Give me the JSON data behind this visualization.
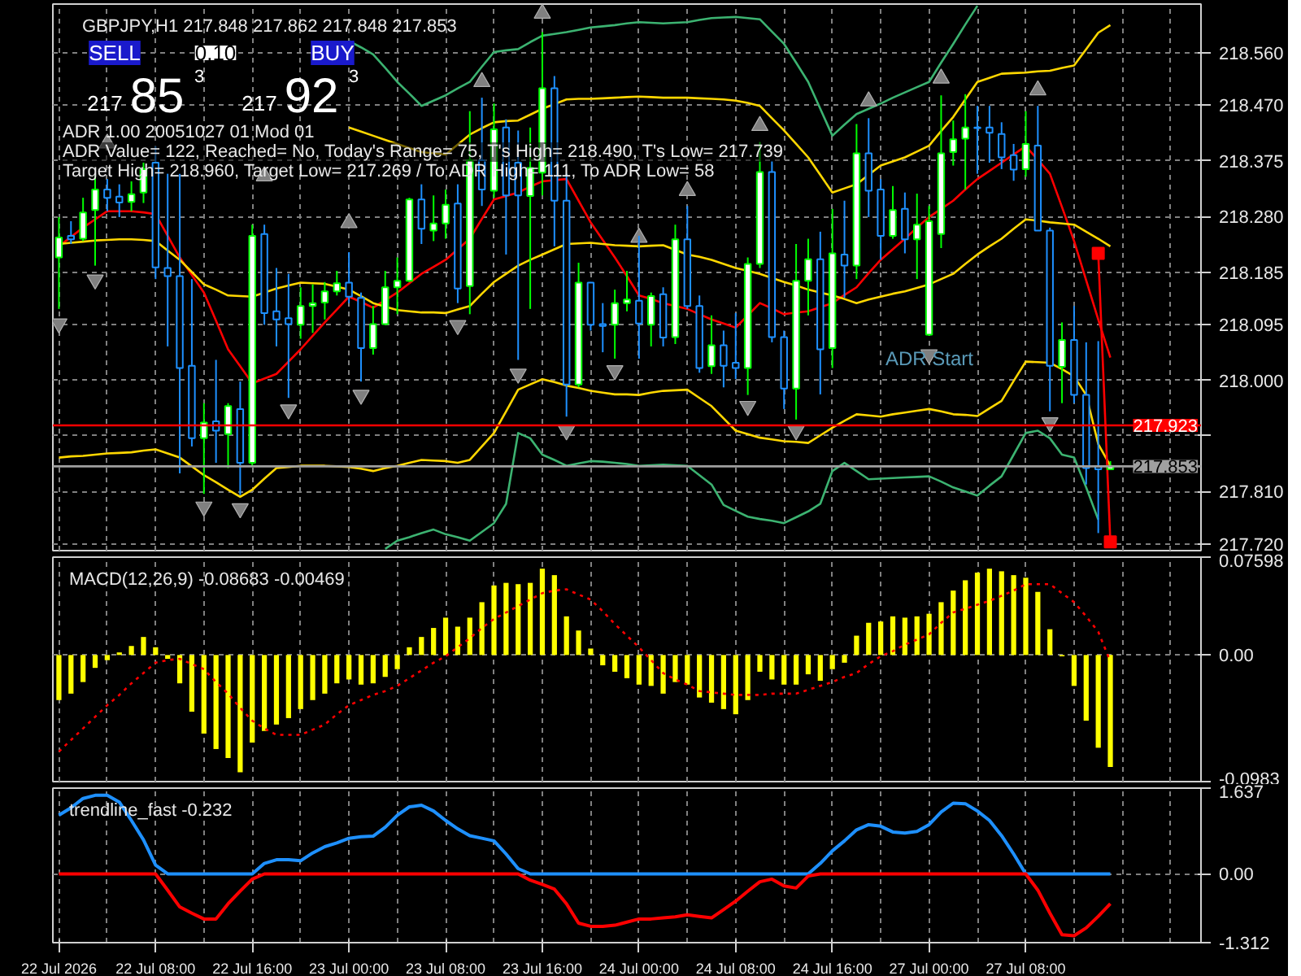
{
  "chart_data": [
    {
      "type": "candlestick",
      "title": "GBPJPY,H1 217.848 217.862 217.848 217.853",
      "categories": [
        null,
        null,
        null,
        null,
        null,
        null,
        null,
        null,
        null,
        null,
        null,
        null,
        null,
        null,
        null,
        null,
        null,
        null,
        null,
        null,
        null,
        null,
        null,
        null,
        null,
        null,
        null,
        null,
        null,
        null,
        null,
        null,
        null,
        null,
        null,
        null,
        null,
        null,
        null,
        null,
        null,
        null,
        null,
        null,
        null,
        null,
        null,
        null,
        null,
        null,
        null,
        null,
        null,
        null,
        null,
        null,
        null,
        null,
        null,
        null,
        null,
        null,
        null,
        null,
        null,
        null,
        null,
        null,
        null,
        null,
        null,
        null,
        null,
        null,
        null,
        null,
        null,
        null,
        null,
        null,
        null,
        null,
        null,
        null,
        null,
        null,
        null,
        null
      ],
      "ohlc": [
        [
          218.21,
          218.279,
          218.122,
          218.244
        ],
        [
          218.247,
          218.272,
          218.233,
          218.241
        ],
        [
          218.242,
          218.312,
          218.238,
          218.287
        ],
        [
          218.291,
          218.349,
          218.196,
          218.326
        ],
        [
          218.326,
          218.344,
          218.289,
          218.312
        ],
        [
          218.314,
          218.335,
          218.279,
          218.304
        ],
        [
          218.305,
          218.34,
          218.289,
          218.318
        ],
        [
          218.321,
          218.372,
          218.303,
          218.361
        ],
        [
          218.372,
          218.4,
          218.173,
          218.193
        ],
        [
          218.192,
          218.353,
          218.058,
          218.178
        ],
        [
          218.178,
          218.353,
          217.841,
          218.021
        ],
        [
          218.025,
          218.173,
          217.887,
          217.901
        ],
        [
          217.901,
          217.961,
          217.806,
          217.928
        ],
        [
          217.93,
          218.035,
          217.859,
          217.914
        ],
        [
          217.908,
          217.961,
          217.85,
          217.956
        ],
        [
          217.951,
          217.998,
          217.804,
          217.859
        ],
        [
          217.859,
          218.266,
          217.854,
          218.247
        ],
        [
          218.25,
          218.266,
          218.095,
          218.115
        ],
        [
          218.118,
          218.192,
          218.058,
          218.104
        ],
        [
          218.106,
          218.182,
          217.97,
          218.096
        ],
        [
          218.095,
          218.159,
          218.071,
          218.127
        ],
        [
          218.127,
          218.164,
          218.081,
          218.132
        ],
        [
          218.133,
          218.168,
          218.104,
          218.152
        ],
        [
          218.152,
          218.187,
          218.145,
          218.166
        ],
        [
          218.167,
          218.219,
          218.132,
          218.143
        ],
        [
          218.141,
          218.15,
          217.998,
          218.055
        ],
        [
          218.055,
          218.127,
          218.044,
          218.096
        ],
        [
          218.096,
          218.187,
          218.095,
          218.159
        ],
        [
          218.159,
          218.21,
          218.113,
          218.17
        ],
        [
          218.17,
          218.312,
          218.168,
          218.309
        ],
        [
          218.309,
          218.335,
          218.233,
          218.259
        ],
        [
          218.256,
          218.316,
          218.238,
          218.268
        ],
        [
          218.268,
          218.326,
          218.242,
          218.3
        ],
        [
          218.302,
          218.335,
          218.132,
          218.157
        ],
        [
          218.161,
          218.46,
          218.113,
          218.376
        ],
        [
          218.376,
          218.483,
          218.298,
          218.326
        ],
        [
          218.324,
          218.473,
          218.312,
          218.429
        ],
        [
          218.432,
          218.446,
          218.215,
          218.316
        ],
        [
          218.372,
          218.427,
          218.035,
          218.316
        ],
        [
          218.315,
          218.432,
          218.122,
          218.363
        ],
        [
          218.355,
          218.595,
          218.316,
          218.499
        ],
        [
          218.499,
          218.52,
          218.229,
          218.307
        ],
        [
          218.307,
          218.353,
          217.938,
          217.993
        ],
        [
          217.993,
          218.201,
          217.988,
          218.167
        ],
        [
          218.167,
          218.168,
          218.085,
          218.095
        ],
        [
          218.096,
          218.132,
          218.048,
          218.093
        ],
        [
          218.095,
          218.155,
          218.037,
          218.132
        ],
        [
          218.132,
          218.187,
          218.118,
          218.138
        ],
        [
          218.136,
          218.247,
          218.037,
          218.097
        ],
        [
          218.095,
          218.15,
          218.058,
          218.144
        ],
        [
          218.147,
          218.159,
          218.058,
          218.073
        ],
        [
          218.074,
          218.266,
          218.062,
          218.241
        ],
        [
          218.241,
          218.298,
          218.122,
          218.127
        ],
        [
          218.127,
          218.145,
          218.013,
          218.021
        ],
        [
          218.024,
          218.111,
          218.011,
          218.06
        ],
        [
          218.06,
          218.085,
          217.988,
          218.025
        ],
        [
          218.03,
          218.115,
          218.002,
          218.021
        ],
        [
          218.021,
          218.21,
          217.975,
          218.199
        ],
        [
          218.199,
          218.407,
          218.192,
          218.356
        ],
        [
          218.356,
          218.375,
          218.065,
          218.074
        ],
        [
          218.074,
          218.085,
          217.951,
          217.986
        ],
        [
          217.986,
          218.233,
          217.933,
          218.17
        ],
        [
          218.17,
          218.242,
          218.111,
          218.207
        ],
        [
          218.207,
          218.254,
          217.976,
          218.053
        ],
        [
          218.055,
          218.293,
          218.021,
          218.217
        ],
        [
          218.215,
          218.307,
          218.141,
          218.196
        ],
        [
          218.196,
          218.438,
          218.173,
          218.388
        ],
        [
          218.388,
          218.448,
          218.279,
          218.324
        ],
        [
          218.326,
          218.344,
          218.206,
          218.247
        ],
        [
          218.247,
          218.332,
          218.242,
          218.291
        ],
        [
          218.293,
          218.321,
          218.217,
          218.241
        ],
        [
          218.241,
          218.319,
          218.173,
          218.266
        ],
        [
          218.078,
          218.298,
          218.076,
          218.272
        ],
        [
          218.25,
          218.487,
          218.226,
          218.388
        ],
        [
          218.39,
          218.444,
          218.367,
          218.412
        ],
        [
          218.413,
          218.489,
          218.326,
          218.432
        ],
        [
          218.432,
          218.469,
          218.353,
          218.431
        ],
        [
          218.432,
          218.469,
          218.372,
          218.423
        ],
        [
          218.421,
          218.441,
          218.361,
          218.381
        ],
        [
          218.385,
          218.404,
          218.341,
          218.36
        ],
        [
          218.361,
          218.46,
          218.348,
          218.404
        ],
        [
          218.401,
          218.469,
          218.256,
          218.256
        ],
        [
          218.256,
          218.261,
          217.947,
          218.025
        ],
        [
          218.023,
          218.099,
          217.961,
          218.069
        ],
        [
          218.069,
          218.127,
          217.961,
          217.975
        ],
        [
          217.975,
          218.065,
          217.822,
          217.85
        ],
        [
          217.853,
          218.067,
          217.739,
          217.848
        ],
        [
          217.848,
          217.862,
          217.848,
          217.853
        ]
      ],
      "series": [
        {
          "type": "line",
          "color": "#ff0000",
          "values": [
            218.229,
            218.245,
            218.261,
            218.275,
            218.289,
            218.289,
            218.289,
            218.287,
            218.284,
            218.247,
            218.21,
            218.18,
            218.15,
            218.102,
            218.053,
            218.024,
            217.995,
            218.003,
            218.011,
            218.032,
            218.053,
            218.076,
            218.099,
            218.121,
            218.143,
            218.134,
            218.124,
            218.137,
            218.15,
            218.166,
            218.182,
            218.194,
            218.206,
            218.224,
            218.242,
            218.276,
            218.309,
            218.315,
            218.321,
            218.331,
            218.34,
            218.342,
            218.344,
            218.307,
            218.27,
            218.24,
            218.21,
            218.178,
            218.145,
            218.139,
            218.132,
            218.127,
            218.122,
            218.113,
            218.104,
            218.097,
            218.09,
            218.111,
            218.132,
            218.123,
            218.113,
            218.116,
            218.118,
            218.125,
            218.132,
            218.146,
            218.159,
            218.183,
            218.206,
            218.224,
            218.242,
            218.261,
            218.279,
            218.293,
            218.307,
            218.326,
            218.344,
            218.358,
            218.372,
            218.386,
            218.4,
            218.377,
            218.353,
            218.296,
            218.238,
            218.171,
            218.104,
            218.039
          ]
        },
        {
          "type": "line",
          "color": "#ffd700",
          "values": [
            218.233,
            218.235,
            218.237,
            218.239,
            218.24,
            218.241,
            218.241,
            218.24,
            218.238,
            218.222,
            218.206,
            218.185,
            218.164,
            218.155,
            218.145,
            218.144,
            218.143,
            218.15,
            218.157,
            218.162,
            218.167,
            218.166,
            218.165,
            218.16,
            218.155,
            218.144,
            218.132,
            218.126,
            218.12,
            218.118,
            218.116,
            218.116,
            218.115,
            218.121,
            218.127,
            218.148,
            218.168,
            218.182,
            218.196,
            218.206,
            218.215,
            218.224,
            218.233,
            218.234,
            218.235,
            218.233,
            218.231,
            218.23,
            218.229,
            218.23,
            218.231,
            218.223,
            218.215,
            218.211,
            218.206,
            218.199,
            218.192,
            218.187,
            218.182,
            218.175,
            218.168,
            218.162,
            218.155,
            218.15,
            218.145,
            218.139,
            218.132,
            218.138,
            218.143,
            218.148,
            218.152,
            218.158,
            218.164,
            218.173,
            218.182,
            218.199,
            218.215,
            218.229,
            218.242,
            218.259,
            218.275,
            218.273,
            218.27,
            218.268,
            218.266,
            218.254,
            218.242,
            218.229
          ]
        },
        {
          "type": "line",
          "color": "#ffd700",
          "values": [
            null,
            null,
            null,
            null,
            null,
            null,
            null,
            null,
            null,
            null,
            null,
            null,
            null,
            null,
            null,
            null,
            null,
            null,
            null,
            null,
            null,
            null,
            null,
            null,
            218.432,
            218.425,
            218.418,
            218.411,
            218.404,
            218.397,
            218.39,
            218.388,
            218.386,
            218.403,
            218.42,
            218.431,
            218.441,
            218.443,
            218.444,
            218.454,
            218.464,
            218.472,
            218.48,
            218.481,
            218.481,
            218.482,
            218.483,
            218.484,
            218.485,
            218.484,
            218.483,
            218.483,
            218.483,
            218.482,
            218.481,
            218.48,
            218.478,
            218.474,
            218.469,
            218.448,
            218.427,
            218.404,
            218.381,
            218.351,
            218.321,
            218.328,
            218.335,
            218.351,
            218.367,
            218.374,
            218.381,
            218.391,
            218.401,
            218.426,
            218.45,
            218.48,
            218.51,
            218.517,
            218.524,
            218.525,
            218.526,
            218.528,
            218.529,
            218.534,
            218.538,
            218.566,
            218.594,
            218.607
          ]
        },
        {
          "type": "line",
          "color": "#ffd700",
          "values": [
            217.868,
            217.87,
            217.871,
            217.873,
            217.875,
            217.876,
            217.877,
            217.88,
            217.882,
            217.875,
            217.868,
            217.853,
            217.838,
            217.826,
            217.813,
            217.801,
            217.813,
            217.832,
            217.85,
            217.852,
            217.854,
            217.854,
            217.854,
            217.853,
            217.852,
            217.849,
            217.845,
            217.85,
            217.854,
            217.859,
            217.864,
            217.863,
            217.862,
            217.859,
            217.864,
            217.887,
            217.91,
            217.947,
            217.984,
            217.993,
            218.002,
            217.997,
            217.991,
            217.987,
            217.982,
            217.979,
            217.976,
            217.976,
            217.975,
            217.979,
            217.982,
            217.983,
            217.984,
            217.97,
            217.956,
            217.935,
            217.914,
            217.908,
            217.902,
            217.899,
            217.896,
            217.895,
            217.893,
            217.906,
            217.919,
            217.931,
            217.942,
            217.94,
            217.938,
            217.942,
            217.945,
            217.948,
            217.951,
            217.947,
            217.942,
            217.941,
            217.939,
            217.952,
            217.965,
            217.999,
            218.032,
            218.031,
            218.03,
            218.019,
            218.007,
            217.975,
            217.891,
            217.854
          ]
        },
        {
          "type": "line",
          "color": "#3cb371",
          "values": [
            null,
            null,
            null,
            null,
            null,
            null,
            null,
            null,
            null,
            null,
            null,
            null,
            null,
            null,
            null,
            null,
            null,
            null,
            null,
            null,
            null,
            null,
            null,
            null,
            218.58,
            218.569,
            218.557,
            218.534,
            218.51,
            218.49,
            218.469,
            218.478,
            218.487,
            218.499,
            218.51,
            218.536,
            218.561,
            218.564,
            218.566,
            218.578,
            218.589,
            218.592,
            218.595,
            218.599,
            218.603,
            218.605,
            218.607,
            218.61,
            218.612,
            218.611,
            218.61,
            218.611,
            218.612,
            218.616,
            218.619,
            218.62,
            218.621,
            218.619,
            218.617,
            218.596,
            218.575,
            218.543,
            218.51,
            218.464,
            218.418,
            218.437,
            218.455,
            218.464,
            218.473,
            218.483,
            218.492,
            218.501,
            218.51,
            218.543,
            218.575,
            218.608,
            218.64,
            null,
            null,
            null,
            null,
            null,
            null,
            null,
            null,
            null,
            null,
            null
          ]
        },
        {
          "type": "line",
          "color": "#3cb371",
          "values": [
            null,
            null,
            null,
            null,
            null,
            null,
            null,
            null,
            null,
            null,
            null,
            null,
            null,
            null,
            null,
            null,
            null,
            null,
            null,
            null,
            null,
            null,
            null,
            null,
            null,
            null,
            null,
            217.712,
            217.726,
            217.732,
            217.739,
            217.745,
            217.737,
            217.732,
            217.726,
            217.741,
            217.756,
            217.789,
            217.91,
            217.901,
            217.873,
            217.864,
            217.854,
            217.858,
            217.862,
            217.861,
            217.859,
            217.857,
            217.854,
            217.855,
            217.856,
            217.855,
            217.854,
            217.838,
            217.822,
            217.787,
            217.777,
            217.767,
            217.763,
            217.76,
            217.756,
            217.766,
            217.776,
            217.789,
            217.845,
            217.859,
            217.845,
            217.831,
            217.832,
            217.833,
            217.834,
            217.835,
            217.836,
            217.827,
            217.817,
            217.81,
            217.803,
            217.82,
            217.836,
            217.873,
            217.91,
            217.914,
            217.901,
            217.873,
            217.868,
            217.817,
            217.762,
            null
          ]
        },
        {
          "type": "scatter",
          "color": "#808080",
          "marker": "triangle",
          "values": [
            null,
            null,
            null,
            null,
            218.405,
            null,
            null,
            null,
            null,
            null,
            null,
            null,
            null,
            null,
            null,
            null,
            null,
            218.349,
            null,
            null,
            null,
            null,
            null,
            null,
            218.269,
            null,
            null,
            null,
            null,
            null,
            null,
            null,
            null,
            null,
            null,
            218.51,
            null,
            null,
            null,
            null,
            218.627,
            null,
            null,
            null,
            null,
            null,
            null,
            null,
            218.244,
            null,
            null,
            null,
            218.324,
            null,
            null,
            null,
            null,
            null,
            218.435,
            null,
            null,
            null,
            null,
            null,
            null,
            null,
            null,
            218.477,
            null,
            null,
            null,
            null,
            null,
            218.516,
            null,
            null,
            null,
            null,
            null,
            null,
            null,
            218.496,
            null,
            null,
            null,
            null,
            null,
            null
          ]
        },
        {
          "type": "scatter",
          "color": "#808080",
          "marker": "triangle",
          "values": [
            218.097,
            null,
            null,
            218.172,
            null,
            null,
            null,
            null,
            null,
            null,
            null,
            null,
            217.784,
            null,
            null,
            217.781,
            null,
            null,
            null,
            217.95,
            null,
            null,
            null,
            null,
            null,
            217.975,
            null,
            null,
            null,
            null,
            null,
            null,
            null,
            218.094,
            null,
            null,
            null,
            null,
            218.011,
            null,
            null,
            null,
            217.914,
            null,
            null,
            null,
            218.017,
            null,
            null,
            null,
            null,
            null,
            null,
            null,
            null,
            null,
            null,
            217.956,
            null,
            null,
            null,
            217.914,
            null,
            null,
            null,
            null,
            null,
            null,
            null,
            null,
            null,
            null,
            218.044,
            null,
            null,
            null,
            null,
            null,
            null,
            null,
            null,
            null,
            217.928,
            null,
            null,
            null,
            null,
            null
          ]
        },
        {
          "type": "line",
          "color": "#ff0000",
          "marker": "square",
          "values": [
            null,
            null,
            null,
            null,
            null,
            null,
            null,
            null,
            null,
            null,
            null,
            null,
            null,
            null,
            null,
            null,
            null,
            null,
            null,
            null,
            null,
            null,
            null,
            null,
            null,
            null,
            null,
            null,
            null,
            null,
            null,
            null,
            null,
            null,
            null,
            null,
            null,
            null,
            null,
            null,
            null,
            null,
            null,
            null,
            null,
            null,
            null,
            null,
            null,
            null,
            null,
            null,
            null,
            null,
            null,
            null,
            null,
            null,
            null,
            null,
            null,
            null,
            null,
            null,
            null,
            null,
            null,
            null,
            null,
            null,
            null,
            null,
            null,
            null,
            null,
            null,
            null,
            null,
            null,
            null,
            null,
            null,
            null,
            null,
            null,
            null,
            218.217,
            217.724
          ]
        }
      ],
      "ylim": [
        217.709,
        218.643
      ],
      "yticks": [
        {
          "value": 218.56,
          "label": "218.560"
        },
        {
          "value": 218.47,
          "label": "218.470"
        },
        218.375,
        {
          "value": 218.28,
          "label": "218.280"
        },
        218.185,
        218.095,
        {
          "value": 218.0,
          "label": "218.000"
        },
        {
          "value": 217.905,
          "label": null
        },
        {
          "value": 217.81,
          "label": "217.810"
        },
        {
          "value": 217.72,
          "label": "217.720"
        }
      ],
      "tick_labels": "y",
      "grid": true,
      "ref_lines": [
        {
          "axis": "y",
          "value": 217.923,
          "label": "217.923",
          "color": "#ff0000"
        },
        {
          "axis": "y",
          "value": 217.853,
          "label": "217.853",
          "color": "#a0a0a0"
        }
      ],
      "annotations": [
        "SELL",
        "0.10",
        "BUY",
        "217",
        "85",
        "3",
        "217",
        "92",
        "3",
        "ADR 1.00 20051027 01 Mod 01",
        "ADR Value= 122, Reached= No, Today's Range= 75, T's High= 218.490, T's Low= 217.739",
        "Target High= 218.960, Target Low= 217.269 / To ADR High= 111, To ADR Low= 58",
        "ADR Start"
      ]
    },
    {
      "type": "bar",
      "title": "MACD(12,26,9) -0.08683 -0.00469",
      "categories": [
        null,
        null,
        null,
        null,
        null,
        null,
        null,
        null,
        null,
        null,
        null,
        null,
        null,
        null,
        null,
        null,
        null,
        null,
        null,
        null,
        null,
        null,
        null,
        null,
        null,
        null,
        null,
        null,
        null,
        null,
        null,
        null,
        null,
        null,
        null,
        null,
        null,
        null,
        null,
        null,
        null,
        null,
        null,
        null,
        null,
        null,
        null,
        null,
        null,
        null,
        null,
        null,
        null,
        null,
        null,
        null,
        null,
        null,
        null,
        null,
        null,
        null,
        null,
        null,
        null,
        null,
        null,
        null,
        null,
        null,
        null,
        null,
        null,
        null,
        null,
        null,
        null,
        null,
        null,
        null,
        null,
        null,
        null,
        null,
        null,
        null,
        null,
        null
      ],
      "series": [
        {
          "color": "#ffff00",
          "values": [
            -0.035,
            -0.03,
            -0.021,
            -0.01,
            -0.004,
            0.002,
            0.007,
            0.014,
            0.006,
            -0.003,
            -0.022,
            -0.044,
            -0.061,
            -0.073,
            -0.08,
            -0.091,
            -0.068,
            -0.059,
            -0.054,
            -0.049,
            -0.042,
            -0.035,
            -0.03,
            -0.022,
            -0.019,
            -0.023,
            -0.022,
            -0.017,
            -0.011,
            0.006,
            0.014,
            0.021,
            0.029,
            0.022,
            0.029,
            0.041,
            0.054,
            0.056,
            0.055,
            0.056,
            0.067,
            0.062,
            0.03,
            0.019,
            0.005,
            -0.008,
            -0.013,
            -0.018,
            -0.023,
            -0.024,
            -0.03,
            -0.021,
            -0.023,
            -0.033,
            -0.037,
            -0.042,
            -0.046,
            -0.035,
            -0.013,
            -0.019,
            -0.023,
            -0.023,
            -0.015,
            -0.02,
            -0.011,
            -0.006,
            0.015,
            0.025,
            0.026,
            0.03,
            0.029,
            0.03,
            0.032,
            0.041,
            0.05,
            0.058,
            0.064,
            0.067,
            0.065,
            0.062,
            0.06,
            0.049,
            0.02,
            -0.001,
            -0.024,
            -0.051,
            -0.072,
            -0.087
          ]
        },
        {
          "type": "line",
          "color": "#ff0000",
          "line_style": "dotted",
          "values": [
            -0.075,
            -0.066,
            -0.057,
            -0.048,
            -0.039,
            -0.031,
            -0.022,
            -0.014,
            -0.006,
            -0.004,
            -0.003,
            -0.007,
            -0.011,
            -0.021,
            -0.03,
            -0.041,
            -0.051,
            -0.057,
            -0.062,
            -0.062,
            -0.062,
            -0.058,
            -0.054,
            -0.046,
            -0.039,
            -0.035,
            -0.031,
            -0.028,
            -0.024,
            -0.018,
            -0.012,
            -0.006,
            -0.001,
            0.006,
            0.013,
            0.021,
            0.028,
            0.033,
            0.038,
            0.043,
            0.048,
            0.05,
            0.051,
            0.047,
            0.043,
            0.034,
            0.024,
            0.015,
            0.006,
            -0.004,
            -0.014,
            -0.019,
            -0.023,
            -0.028,
            -0.029,
            -0.03,
            -0.031,
            -0.031,
            -0.031,
            -0.03,
            -0.03,
            -0.03,
            -0.027,
            -0.024,
            -0.021,
            -0.017,
            -0.014,
            -0.007,
            -0.001,
            0.003,
            0.008,
            0.012,
            0.016,
            0.025,
            0.033,
            0.036,
            0.039,
            0.042,
            0.046,
            0.05,
            0.055,
            0.055,
            0.055,
            0.048,
            0.041,
            0.03,
            0.018,
            -0.005
          ]
        }
      ],
      "ylim": [
        -0.0983,
        0.07598
      ],
      "yticks": [
        0.07598,
        {
          "value": 0,
          "label": "0.00"
        },
        -0.0983
      ],
      "tick_labels": "y",
      "grid": true
    },
    {
      "type": "line",
      "title": "trendline_fast -0.232",
      "categories": [
        "22 Jul 2026",
        null,
        null,
        null,
        null,
        null,
        null,
        null,
        "22 Jul 08:00",
        null,
        null,
        null,
        null,
        null,
        null,
        null,
        "22 Jul 16:00",
        null,
        null,
        null,
        null,
        null,
        null,
        null,
        "23 Jul 00:00",
        null,
        null,
        null,
        null,
        null,
        null,
        null,
        "23 Jul 08:00",
        null,
        null,
        null,
        null,
        null,
        null,
        null,
        "23 Jul 16:00",
        null,
        null,
        null,
        null,
        null,
        null,
        null,
        "24 Jul 00:00",
        null,
        null,
        null,
        null,
        null,
        null,
        null,
        "24 Jul 08:00",
        null,
        null,
        null,
        null,
        null,
        null,
        null,
        "24 Jul 16:00",
        null,
        null,
        null,
        null,
        null,
        null,
        null,
        "27 Jul 00:00",
        null,
        null,
        null,
        null,
        null,
        null,
        null,
        "27 Jul 08:00",
        null,
        null,
        null,
        null,
        null,
        null,
        null
      ],
      "series": [
        {
          "color": "#1e90ff",
          "values": [
            1.12,
            1.26,
            1.44,
            1.5,
            1.5,
            1.37,
            1.02,
            0.65,
            0.17,
            0,
            0,
            0,
            0,
            0,
            0,
            0,
            0,
            0.2,
            0.27,
            0.27,
            0.25,
            0.4,
            0.52,
            0.59,
            0.68,
            0.71,
            0.72,
            0.89,
            1.12,
            1.28,
            1.31,
            1.2,
            1.02,
            0.86,
            0.73,
            0.68,
            0.63,
            0.38,
            0.1,
            0,
            0,
            0,
            0,
            0,
            0,
            0,
            0,
            0,
            0,
            0,
            0,
            0,
            0,
            0,
            0,
            0,
            0,
            0,
            0,
            0,
            0,
            0,
            0,
            0.2,
            0.44,
            0.63,
            0.84,
            0.94,
            0.91,
            0.8,
            0.78,
            0.81,
            0.94,
            1.18,
            1.35,
            1.34,
            1.2,
            1.02,
            0.73,
            0.38,
            0,
            0,
            0,
            0,
            0,
            0,
            0,
            0
          ]
        },
        {
          "color": "#ff0000",
          "values": [
            0,
            0,
            0,
            0,
            0,
            0,
            0,
            0,
            0,
            -0.31,
            -0.63,
            -0.75,
            -0.86,
            -0.86,
            -0.57,
            -0.33,
            -0.1,
            0,
            0,
            0,
            0,
            0,
            0,
            0,
            0,
            0,
            0,
            0,
            0,
            0,
            0,
            0,
            0,
            0,
            0,
            0,
            0,
            0,
            0,
            -0.12,
            -0.2,
            -0.29,
            -0.57,
            -0.94,
            -1.0,
            -1.0,
            -0.98,
            -0.92,
            -0.86,
            -0.86,
            -0.84,
            -0.82,
            -0.78,
            -0.81,
            -0.84,
            -0.68,
            -0.52,
            -0.33,
            -0.15,
            -0.1,
            -0.23,
            -0.27,
            -0.04,
            0,
            0,
            0,
            0,
            0,
            0,
            0,
            0,
            0,
            0,
            0,
            0,
            0,
            0,
            0,
            0,
            0,
            0,
            -0.31,
            -0.75,
            -1.16,
            -1.18,
            -1.03,
            -0.81,
            -0.57
          ]
        }
      ],
      "ylim": [
        -1.312,
        1.637
      ],
      "yticks": [
        1.637,
        {
          "value": 0,
          "label": "0.00"
        },
        -1.312
      ],
      "grid": true
    }
  ]
}
